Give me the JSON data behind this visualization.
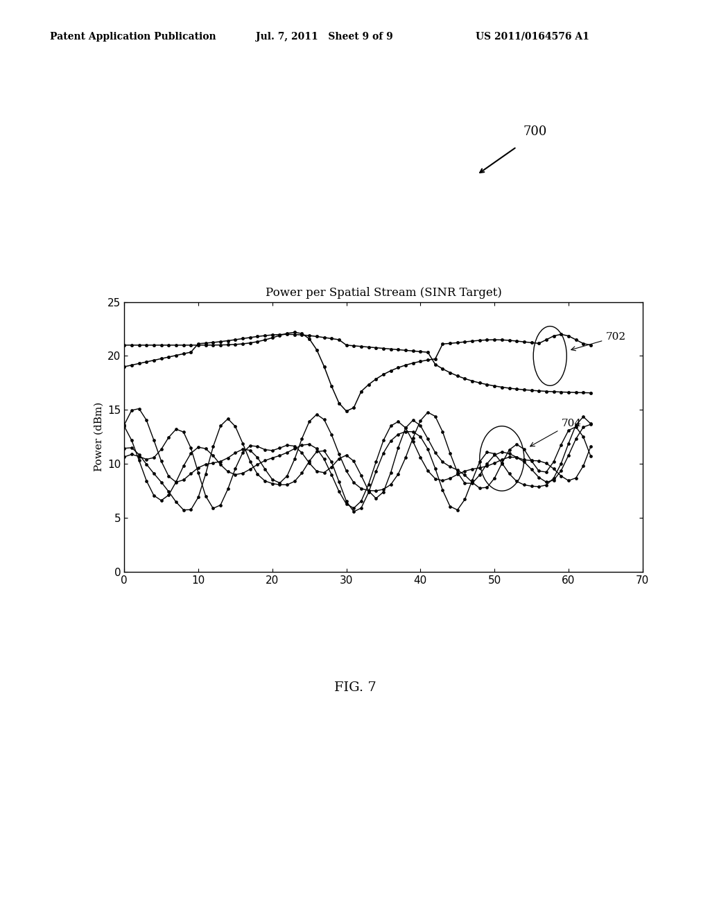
{
  "title": "Power per Spatial Stream (SINR Target)",
  "xlabel": "",
  "ylabel": "Power (dBm)",
  "xlim": [
    0,
    70
  ],
  "ylim": [
    0,
    25
  ],
  "xticks": [
    0,
    10,
    20,
    30,
    40,
    50,
    60,
    70
  ],
  "yticks": [
    0,
    5,
    10,
    15,
    20,
    25
  ],
  "fig_caption": "FIG. 7",
  "header_left": "Patent Application Publication",
  "header_center": "Jul. 7, 2011   Sheet 9 of 9",
  "header_right": "US 2011/0164576 A1",
  "label_702": "702",
  "label_704": "704",
  "label_700": "700",
  "bg_color": "#ffffff",
  "line_color": "#000000",
  "n_points": 64
}
